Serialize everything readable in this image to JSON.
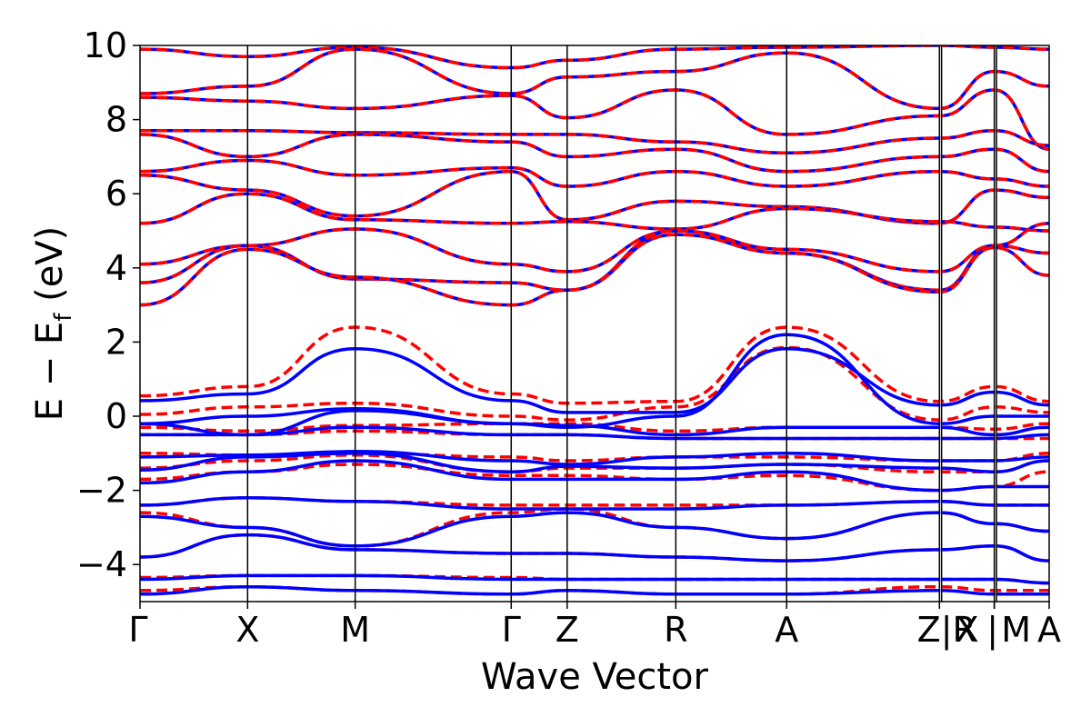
{
  "chart_data": {
    "type": "line",
    "title": "",
    "xlabel": "Wave Vector",
    "ylabel_parts": {
      "main": "E − E",
      "subscript": "f",
      "unit": " (eV)"
    },
    "ylim": [
      -5,
      10
    ],
    "yticks": [
      -4,
      -2,
      0,
      2,
      4,
      6,
      8,
      10
    ],
    "ytick_labels": [
      "−4",
      "−2",
      "0",
      "2",
      "4",
      "6",
      "8",
      "10"
    ],
    "kpath": {
      "labels": [
        "Γ",
        "X",
        "M",
        "Γ",
        "Z",
        "R",
        "A",
        "Z",
        "R",
        "X",
        "M",
        "A"
      ],
      "tick_labels": [
        "Γ",
        "X",
        "M",
        "Γ",
        "Z",
        "R",
        "A",
        "Z|R",
        "X",
        "|",
        "M",
        "A"
      ],
      "positions": [
        0,
        1,
        2,
        3.45,
        3.97,
        4.98,
        6.01,
        7.43,
        7.43,
        7.94,
        7.94,
        8.45
      ],
      "segments": [
        [
          0,
          1
        ],
        [
          1,
          2
        ],
        [
          2,
          3.45
        ],
        [
          3.45,
          3.97
        ],
        [
          3.97,
          4.98
        ],
        [
          4.98,
          6.01
        ],
        [
          6.01,
          7.43
        ],
        [
          7.43,
          7.94
        ],
        [
          7.94,
          8.45
        ]
      ],
      "gaps": [
        [
          7.43,
          7.45
        ],
        [
          7.94,
          7.96
        ]
      ]
    },
    "series": [
      {
        "style": "solid",
        "color": "#0000ff"
      },
      {
        "style": "dashed",
        "color": "#ff0000"
      }
    ],
    "grid": false,
    "legend": "none",
    "bands": {
      "conduction": [
        [
          9.9,
          9.7,
          9.95,
          9.4,
          9.6,
          9.9,
          9.95,
          10.0,
          9.95,
          9.9,
          9.95,
          9.8
        ],
        [
          8.7,
          8.9,
          9.9,
          8.7,
          9.15,
          9.3,
          9.8,
          8.3,
          9.3,
          8.9,
          9.9,
          9.7
        ],
        [
          8.6,
          8.5,
          8.3,
          8.65,
          8.05,
          8.8,
          7.6,
          8.1,
          8.8,
          7.2,
          8.2,
          7.6
        ],
        [
          7.7,
          7.7,
          7.65,
          7.6,
          7.6,
          7.4,
          7.1,
          7.5,
          7.7,
          7.3,
          7.6,
          7.4
        ],
        [
          7.6,
          7.0,
          7.6,
          7.4,
          7.0,
          7.2,
          6.6,
          7.0,
          7.2,
          6.6,
          7.3,
          6.8
        ],
        [
          6.6,
          6.9,
          6.5,
          6.7,
          6.2,
          6.6,
          6.2,
          6.6,
          6.4,
          6.2,
          6.5,
          6.2
        ],
        [
          6.5,
          6.1,
          5.4,
          6.6,
          5.3,
          5.8,
          5.65,
          5.2,
          6.1,
          5.9,
          6.0,
          5.7
        ],
        [
          5.2,
          6.0,
          5.3,
          5.2,
          5.25,
          5.05,
          5.6,
          5.25,
          5.1,
          5.0,
          5.7,
          5.6
        ],
        [
          4.1,
          4.6,
          5.05,
          4.1,
          3.9,
          5.0,
          4.5,
          3.9,
          4.6,
          5.2,
          4.4,
          4.4
        ],
        [
          3.6,
          4.6,
          3.7,
          3.6,
          3.4,
          5.0,
          4.4,
          3.4,
          4.6,
          4.4,
          3.75,
          3.8
        ],
        [
          3.0,
          4.5,
          3.75,
          3.0,
          3.4,
          4.9,
          4.4,
          3.35,
          4.55,
          3.8,
          3.75,
          3.75
        ]
      ],
      "valence_blue": [
        [
          0.42,
          0.6,
          1.82,
          0.42,
          0.1,
          0.1,
          1.82,
          0.3,
          0.65,
          0.3,
          1.82,
          1.82
        ],
        [
          -0.2,
          0.0,
          0.2,
          -0.2,
          -0.3,
          0.0,
          2.2,
          -0.2,
          0.0,
          0.0,
          2.2,
          2.2
        ],
        [
          -0.2,
          -0.5,
          0.15,
          -0.2,
          -0.25,
          -0.5,
          -0.3,
          -0.3,
          -0.5,
          -0.3,
          -0.3,
          -0.3
        ],
        [
          -0.5,
          -0.5,
          -0.3,
          -0.5,
          -0.5,
          -0.6,
          -0.6,
          -0.6,
          -0.6,
          -0.5,
          -0.9,
          -1.0
        ],
        [
          -1.1,
          -1.05,
          -0.95,
          -1.2,
          -1.3,
          -1.1,
          -1.0,
          -1.2,
          -1.2,
          -1.1,
          -1.1,
          -1.1
        ],
        [
          -1.45,
          -1.1,
          -1.0,
          -1.5,
          -1.35,
          -1.4,
          -1.3,
          -1.4,
          -1.5,
          -1.2,
          -1.5,
          -1.5
        ],
        [
          -1.8,
          -1.5,
          -1.2,
          -1.7,
          -1.7,
          -1.7,
          -1.5,
          -2.0,
          -1.9,
          -1.9,
          -2.1,
          -1.6
        ],
        [
          -2.4,
          -2.2,
          -2.3,
          -2.5,
          -2.5,
          -2.5,
          -2.4,
          -2.3,
          -2.4,
          -2.4,
          -2.5,
          -2.4
        ],
        [
          -2.7,
          -3.0,
          -3.5,
          -2.7,
          -2.6,
          -3.0,
          -3.3,
          -2.6,
          -2.9,
          -3.1,
          -3.4,
          -3.3
        ],
        [
          -3.8,
          -3.2,
          -3.6,
          -3.7,
          -3.7,
          -3.8,
          -3.9,
          -3.6,
          -3.5,
          -3.9,
          -4.0,
          -3.8
        ],
        [
          -4.4,
          -4.3,
          -4.3,
          -4.4,
          -4.4,
          -4.4,
          -4.4,
          -4.4,
          -4.4,
          -4.5,
          -4.4,
          -4.6
        ],
        [
          -4.8,
          -4.6,
          -4.7,
          -4.8,
          -4.7,
          -4.8,
          -4.8,
          -4.7,
          -4.8,
          -4.8,
          -4.8,
          -4.9
        ]
      ],
      "valence_red": [
        [
          0.55,
          0.8,
          2.4,
          0.6,
          0.35,
          0.4,
          2.4,
          0.4,
          0.8,
          0.4,
          2.4,
          2.4
        ],
        [
          0.05,
          0.25,
          0.35,
          0.0,
          -0.1,
          0.25,
          1.85,
          -0.1,
          0.25,
          0.1,
          1.85,
          1.85
        ],
        [
          -0.3,
          -0.4,
          -0.25,
          -0.2,
          -0.2,
          -0.4,
          -0.3,
          -0.3,
          -0.35,
          -0.2,
          -0.3,
          -0.3
        ],
        [
          -0.5,
          -0.5,
          -0.4,
          -0.5,
          -0.5,
          -0.6,
          -0.6,
          -0.6,
          -0.6,
          -0.6,
          -0.6,
          -0.6
        ],
        [
          -1.0,
          -1.05,
          -1.0,
          -1.1,
          -1.2,
          -1.1,
          -1.1,
          -1.2,
          -1.2,
          -1.0,
          -1.0,
          -1.0
        ],
        [
          -1.4,
          -1.2,
          -1.05,
          -1.5,
          -1.4,
          -1.4,
          -1.3,
          -1.5,
          -1.5,
          -1.2,
          -1.3,
          -1.3
        ],
        [
          -1.7,
          -1.5,
          -1.3,
          -1.6,
          -1.6,
          -1.7,
          -1.6,
          -2.0,
          -1.9,
          -1.5,
          -1.5,
          -1.5
        ],
        [
          -2.4,
          -2.2,
          -2.3,
          -2.4,
          -2.4,
          -2.4,
          -2.4,
          -2.3,
          -2.4,
          -2.4,
          -2.5,
          -2.5
        ],
        [
          -2.6,
          -3.0,
          -3.5,
          -2.6,
          -2.5,
          -3.0,
          -3.3,
          -2.6,
          -2.9,
          -3.1,
          -3.3,
          -3.3
        ],
        [
          -3.8,
          -3.2,
          -3.6,
          -3.7,
          -3.7,
          -3.8,
          -3.9,
          -3.6,
          -3.5,
          -3.9,
          -4.0,
          -3.8
        ],
        [
          -4.35,
          -4.3,
          -4.3,
          -4.35,
          -4.4,
          -4.4,
          -4.4,
          -4.4,
          -4.4,
          -4.5,
          -4.4,
          -4.35
        ],
        [
          -4.7,
          -4.6,
          -4.7,
          -4.8,
          -4.7,
          -4.8,
          -4.8,
          -4.6,
          -4.7,
          -4.7,
          -4.7,
          -4.65
        ]
      ]
    }
  }
}
